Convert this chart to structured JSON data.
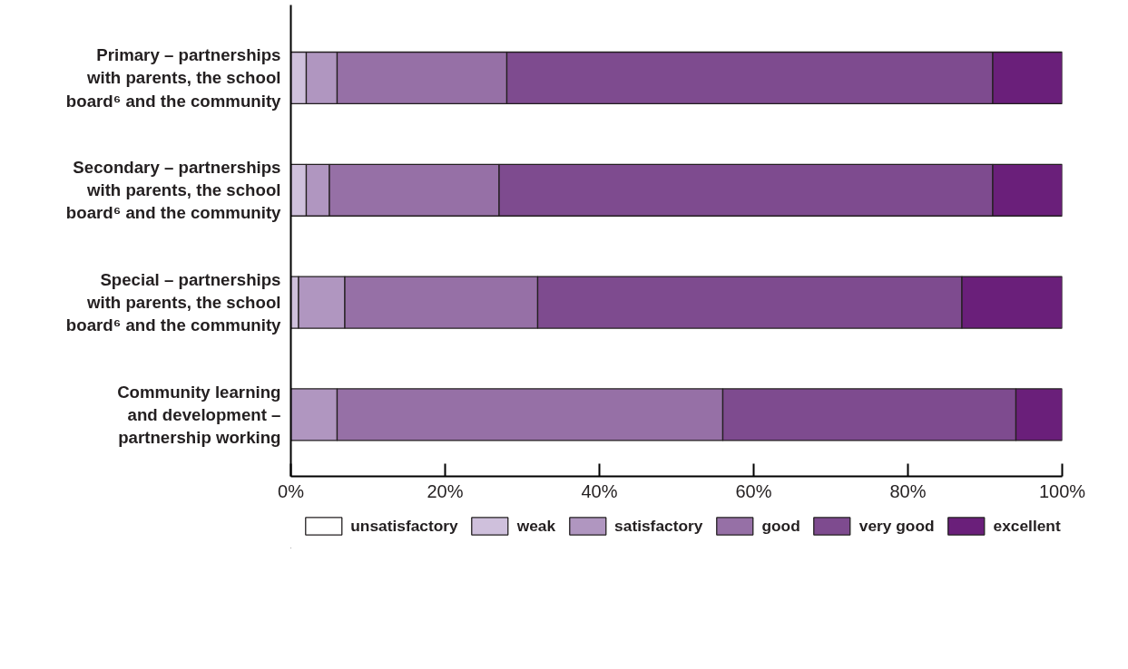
{
  "chart_data": {
    "type": "bar",
    "orientation": "horizontal",
    "stacked": true,
    "categories": [
      "Primary – partnerships\nwith parents, the school\nboard⁶ and the community",
      "Secondary – partnerships\nwith parents, the school\nboard⁶ and the community",
      "Special – partnerships\nwith parents, the school\nboard⁶ and the community",
      "Community learning\nand development –\npartnership working"
    ],
    "series": [
      {
        "name": "unsatisfactory",
        "color": "#ffffff",
        "values": [
          0,
          0,
          0,
          0
        ]
      },
      {
        "name": "weak",
        "color": "#cfc0dc",
        "values": [
          2,
          2,
          1,
          0
        ]
      },
      {
        "name": "satisfactory",
        "color": "#b096c0",
        "values": [
          4,
          3,
          6,
          6
        ]
      },
      {
        "name": "good",
        "color": "#9670a6",
        "values": [
          22,
          22,
          25,
          50
        ]
      },
      {
        "name": "very good",
        "color": "#7e4b8f",
        "values": [
          63,
          64,
          55,
          38
        ]
      },
      {
        "name": "excellent",
        "color": "#6a1f7a",
        "values": [
          9,
          9,
          13,
          6
        ]
      }
    ],
    "xlim": [
      0,
      100
    ],
    "xticks": [
      {
        "value": 0,
        "label": "0%"
      },
      {
        "value": 20,
        "label": "20%"
      },
      {
        "value": 40,
        "label": "40%"
      },
      {
        "value": 60,
        "label": "60%"
      },
      {
        "value": 80,
        "label": "80%"
      },
      {
        "value": 100,
        "label": "100%"
      }
    ],
    "grid": false,
    "legend": "bottom"
  }
}
